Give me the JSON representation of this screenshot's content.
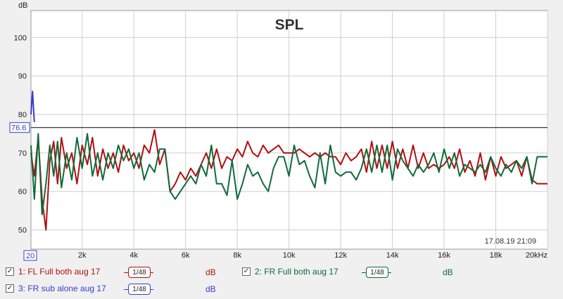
{
  "chart_data": {
    "type": "line",
    "title": "SPL",
    "ylabel": "dB",
    "xunit": "kHz",
    "xlim": [
      20,
      20000
    ],
    "ylim": [
      45,
      107
    ],
    "yticks": [
      50,
      60,
      70,
      80,
      90,
      100
    ],
    "ytick_labels": [
      "50",
      "60",
      "70",
      "80",
      "90",
      "100"
    ],
    "xticks": [
      2000,
      4000,
      6000,
      8000,
      10000,
      12000,
      14000,
      16000,
      18000,
      20000
    ],
    "xtick_labels": [
      "2k",
      "4k",
      "6k",
      "8k",
      "10k",
      "12k",
      "14k",
      "16k",
      "18k",
      "20kHz"
    ],
    "x_start_label": "20",
    "cursor_level": 76.6,
    "cursor_label": "76.6",
    "timestamp": "17.08.19 21:09",
    "grid": true,
    "series": [
      {
        "name": "1: FL Full both aug 17",
        "color": "#b01010",
        "x": [
          20,
          150,
          300,
          450,
          600,
          750,
          900,
          1050,
          1200,
          1400,
          1600,
          1800,
          2000,
          2200,
          2400,
          2600,
          2800,
          3000,
          3200,
          3400,
          3600,
          3800,
          4000,
          4200,
          4400,
          4600,
          4800,
          5000,
          5200,
          5400,
          5600,
          5800,
          6000,
          6200,
          6400,
          6600,
          6800,
          7000,
          7200,
          7400,
          7600,
          7800,
          8000,
          8200,
          8400,
          8600,
          8800,
          9000,
          9200,
          9400,
          9600,
          9800,
          10000,
          10200,
          10400,
          10600,
          10800,
          11000,
          11200,
          11400,
          11600,
          11800,
          12000,
          12200,
          12400,
          12600,
          12800,
          13000,
          13200,
          13400,
          13600,
          13800,
          14000,
          14200,
          14400,
          14600,
          14800,
          15000,
          15200,
          15400,
          15600,
          15800,
          16000,
          16200,
          16400,
          16600,
          16800,
          17000,
          17200,
          17400,
          17600,
          17800,
          18000,
          18200,
          18400,
          18600,
          18800,
          19000,
          19200,
          19400,
          19600,
          19800,
          20000
        ],
        "values": [
          70,
          64,
          74,
          58,
          50,
          68,
          73,
          62,
          74,
          66,
          70,
          62,
          72,
          67,
          74,
          64,
          71,
          66,
          70,
          65,
          72,
          68,
          70,
          66,
          72,
          70,
          76,
          67,
          71,
          60,
          62,
          65,
          63,
          66,
          64,
          67,
          70,
          66,
          71,
          66,
          69,
          68,
          71,
          69,
          73,
          70,
          69,
          72,
          70,
          71,
          72,
          70,
          70,
          70,
          71,
          70,
          69,
          70,
          69,
          70,
          69,
          69,
          67,
          70,
          68,
          69,
          71,
          65,
          73,
          66,
          72,
          66,
          73,
          66,
          71,
          66,
          72,
          66,
          70,
          66,
          67,
          66,
          67,
          69,
          66,
          71,
          65,
          68,
          64,
          70,
          63,
          69,
          64,
          69,
          66,
          67,
          68,
          64,
          69,
          63,
          62,
          62,
          62
        ]
      },
      {
        "name": "2: FR Full both aug 17",
        "color": "#0f6b3a",
        "x": [
          20,
          150,
          300,
          450,
          600,
          750,
          900,
          1050,
          1200,
          1400,
          1600,
          1800,
          2000,
          2200,
          2400,
          2600,
          2800,
          3000,
          3200,
          3400,
          3600,
          3800,
          4000,
          4200,
          4400,
          4600,
          4800,
          5000,
          5200,
          5400,
          5600,
          5800,
          6000,
          6200,
          6400,
          6600,
          6800,
          7000,
          7200,
          7400,
          7600,
          7800,
          8000,
          8200,
          8400,
          8600,
          8800,
          9000,
          9200,
          9400,
          9600,
          9800,
          10000,
          10200,
          10400,
          10600,
          10800,
          11000,
          11200,
          11400,
          11600,
          11800,
          12000,
          12200,
          12400,
          12600,
          12800,
          13000,
          13200,
          13400,
          13600,
          13800,
          14000,
          14200,
          14400,
          14600,
          14800,
          15000,
          15200,
          15400,
          15600,
          15800,
          16000,
          16200,
          16400,
          16600,
          16800,
          17000,
          17200,
          17400,
          17600,
          17800,
          18000,
          18200,
          18400,
          18600,
          18800,
          19000,
          19200,
          19400,
          19600,
          19800,
          20000
        ],
        "values": [
          72,
          58,
          75,
          54,
          62,
          72,
          64,
          73,
          61,
          70,
          63,
          74,
          66,
          75,
          64,
          70,
          63,
          70,
          66,
          72,
          68,
          71,
          66,
          70,
          63,
          67,
          65,
          71,
          71,
          60,
          58,
          60,
          62,
          64,
          62,
          67,
          64,
          72,
          62,
          62,
          59,
          68,
          58,
          62,
          67,
          64,
          65,
          62,
          60,
          66,
          69,
          69,
          64,
          72,
          67,
          68,
          64,
          61,
          70,
          62,
          72,
          65,
          64,
          65,
          65,
          63,
          66,
          71,
          65,
          72,
          65,
          72,
          63,
          71,
          68,
          66,
          64,
          67,
          65,
          67,
          70,
          65,
          71,
          66,
          70,
          64,
          67,
          66,
          65,
          67,
          65,
          69,
          66,
          64,
          67,
          65,
          68,
          66,
          69,
          62,
          69,
          69,
          69
        ]
      },
      {
        "name": "3: FR sub alone aug 17",
        "color": "#3a3ad0",
        "x": [
          20,
          80,
          150
        ],
        "values": [
          80,
          86,
          78
        ]
      }
    ]
  },
  "legend": [
    {
      "label": "1: FL Full both aug 17",
      "smoothing": "1/48",
      "unit": "dB",
      "checked": "✓",
      "color": "#b01010"
    },
    {
      "label": "2: FR Full both aug 17",
      "smoothing": "1/48",
      "unit": "dB",
      "checked": "✓",
      "color": "#0f6b3a"
    },
    {
      "label": "3: FR sub alone aug 17",
      "smoothing": "1/48",
      "unit": "dB",
      "checked": "✓",
      "color": "#3a3ad0"
    }
  ]
}
